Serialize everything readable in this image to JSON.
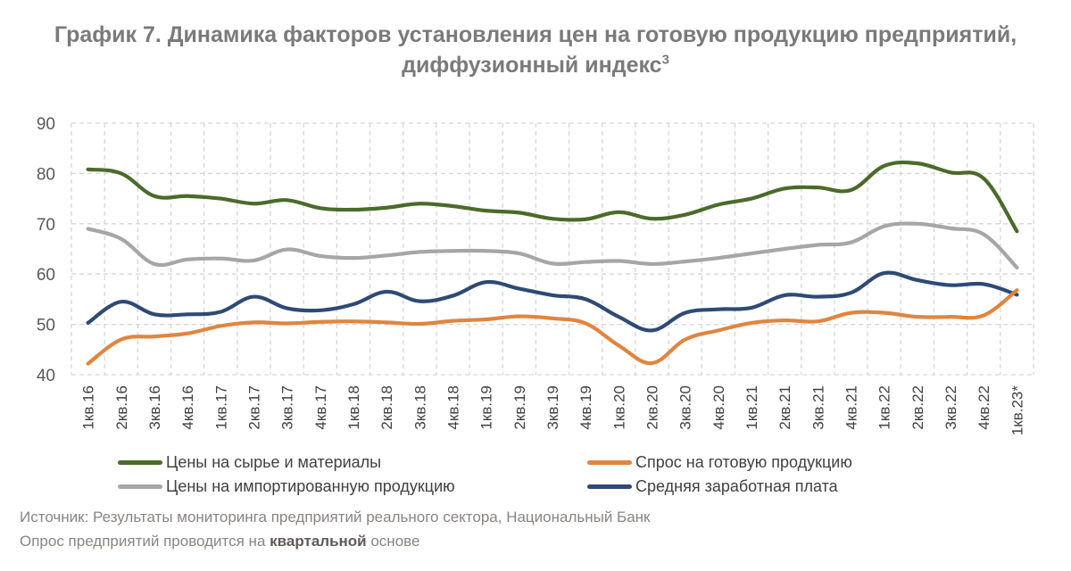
{
  "title": {
    "line1": "График 7. Динамика факторов установления цен на готовую продукцию предприятий,",
    "line2": "диффузионный индекс",
    "superscript": "3"
  },
  "chart_data": {
    "type": "line",
    "title": "График 7. Динамика факторов установления цен на готовую продукцию предприятий, диффузионный индекс³",
    "xlabel": "",
    "ylabel": "",
    "ylim": [
      40,
      90
    ],
    "yticks": [
      40,
      50,
      60,
      70,
      80,
      90
    ],
    "grid": true,
    "legend_position": "bottom",
    "categories": [
      "1кв.16",
      "2кв.16",
      "3кв.16",
      "4кв.16",
      "1кв.17",
      "2кв.17",
      "3кв.17",
      "4кв.17",
      "1кв.18",
      "2кв.18",
      "3кв.18",
      "4кв.18",
      "1кв.19",
      "2кв.19",
      "3кв.19",
      "4кв.19",
      "1кв.20",
      "2кв.20",
      "3кв.20",
      "4кв.20",
      "1кв.21",
      "2кв.21",
      "3кв.21",
      "4кв.21",
      "1кв.22",
      "2кв.22",
      "3кв.22",
      "4кв.22",
      "1кв.23*"
    ],
    "series": [
      {
        "name": "Цены на сырье и материалы",
        "color": "#4a6b2a",
        "values": [
          80.8,
          80,
          75.5,
          75.5,
          75,
          74,
          74.7,
          73.1,
          72.8,
          73.2,
          74,
          73.5,
          72.6,
          72.2,
          71,
          70.9,
          72.3,
          71,
          71.8,
          73.8,
          75,
          77,
          77.2,
          76.7,
          81.5,
          82,
          80.2,
          79,
          68.5
        ]
      },
      {
        "name": "Спрос на готовую продукцию",
        "color": "#e0853f",
        "values": [
          42.2,
          47,
          47.6,
          48.2,
          49.7,
          50.4,
          50.2,
          50.5,
          50.6,
          50.4,
          50.1,
          50.7,
          51,
          51.6,
          51.2,
          50.2,
          45.8,
          42.3,
          47,
          48.8,
          50.3,
          50.8,
          50.6,
          52.3,
          52.3,
          51.5,
          51.5,
          51.8,
          56.8
        ]
      },
      {
        "name": "Цены на импортированную продукцию",
        "color": "#a6a6a6",
        "values": [
          69,
          67,
          62,
          62.9,
          63.1,
          62.7,
          64.9,
          63.6,
          63.2,
          63.7,
          64.4,
          64.6,
          64.6,
          64.1,
          62.1,
          62.4,
          62.6,
          62,
          62.5,
          63.2,
          64.1,
          65,
          65.8,
          66.3,
          69.5,
          70,
          69.1,
          67.9,
          61.3
        ]
      },
      {
        "name": "Средняя заработная плата",
        "color": "#2e4a75",
        "values": [
          50.3,
          54.5,
          52,
          52,
          52.5,
          55.5,
          53.2,
          52.8,
          54,
          56.5,
          54.6,
          55.7,
          58.4,
          57.1,
          55.8,
          55,
          51.5,
          48.8,
          52.3,
          53,
          53.3,
          55.8,
          55.5,
          56.3,
          60.2,
          58.8,
          57.8,
          58,
          55.9
        ]
      }
    ]
  },
  "footer": {
    "source": "Источник: Результаты мониторинга предприятий реального сектора, Национальный Банк",
    "note_prefix": "Опрос предприятий проводится на ",
    "note_bold": "квартальной",
    "note_suffix": " основе"
  }
}
